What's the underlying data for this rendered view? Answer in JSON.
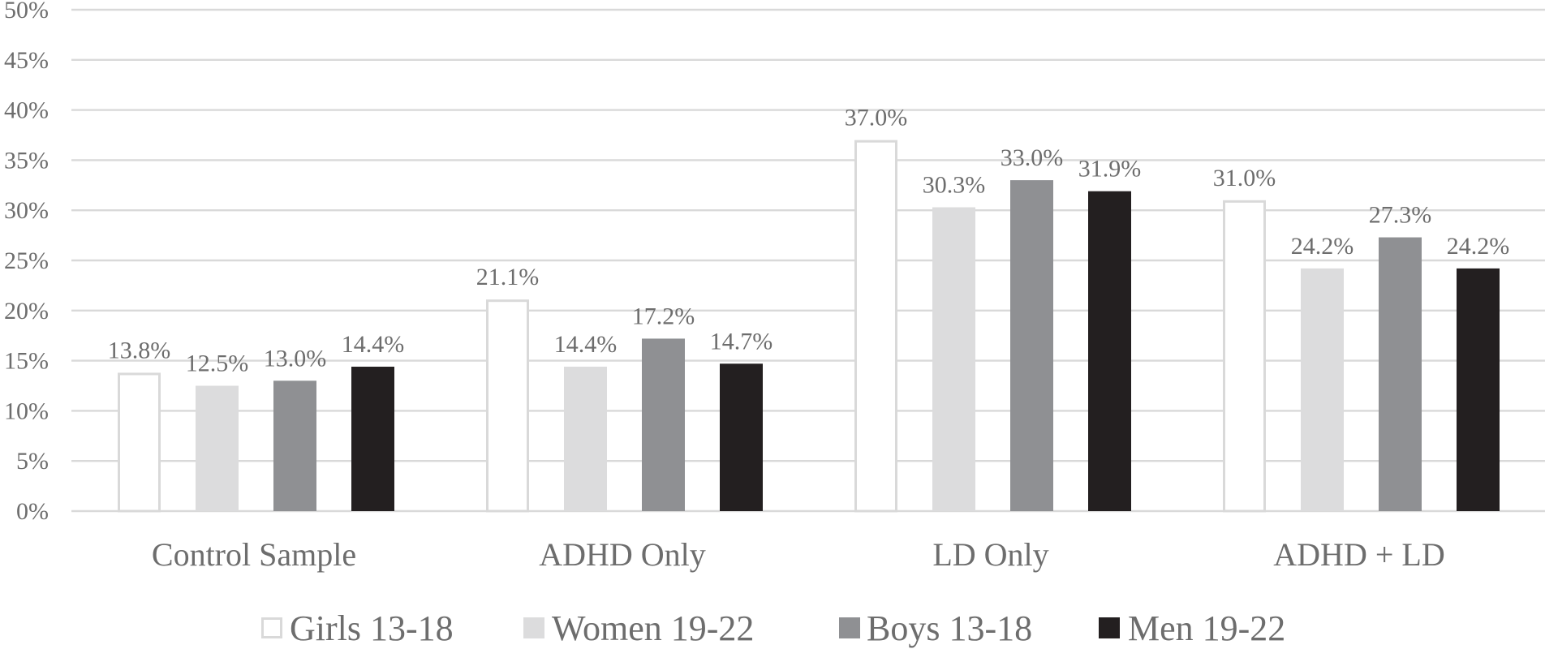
{
  "chart_data": {
    "type": "bar",
    "title": "",
    "xlabel": "",
    "ylabel": "",
    "ylim": [
      0,
      50
    ],
    "ytick_step": 5,
    "ytick_format": "percent",
    "grid": true,
    "legend_position": "bottom",
    "categories": [
      "Control Sample",
      "ADHD Only",
      "LD Only",
      "ADHD + LD"
    ],
    "series": [
      {
        "name": "Girls 13-18",
        "color": "#ffffff",
        "stroke": "#d9d9d9",
        "values": [
          13.8,
          21.1,
          37.0,
          31.0
        ],
        "labels": [
          "13.8%",
          "21.1%",
          "37.0%",
          "31.0%"
        ]
      },
      {
        "name": "Women 19-22",
        "color": "#dcdcdd",
        "stroke": "none",
        "values": [
          12.5,
          14.4,
          30.3,
          24.2
        ],
        "labels": [
          "12.5%",
          "14.4%",
          "30.3%",
          "24.2%"
        ]
      },
      {
        "name": "Boys 13-18",
        "color": "#8f9093",
        "stroke": "none",
        "values": [
          13.0,
          17.2,
          33.0,
          27.3
        ],
        "labels": [
          "13.0%",
          "17.2%",
          "33.0%",
          "27.3%"
        ]
      },
      {
        "name": "Men 19-22",
        "color": "#231f20",
        "stroke": "none",
        "values": [
          14.4,
          14.7,
          31.9,
          24.2
        ],
        "labels": [
          "14.4%",
          "14.7%",
          "31.9%",
          "24.2%"
        ]
      }
    ]
  }
}
